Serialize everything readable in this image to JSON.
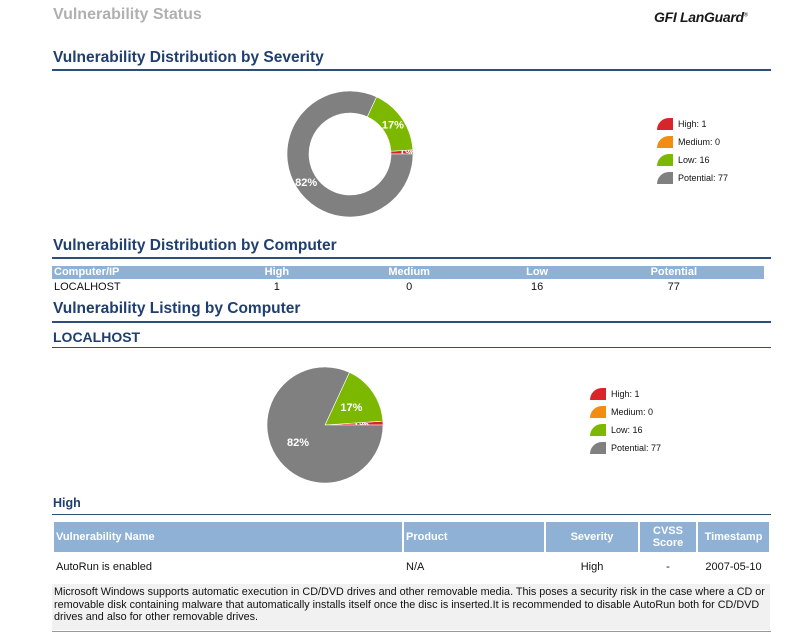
{
  "header": {
    "title": "Vulnerability Status",
    "logo_brand": "GFI",
    "logo_product": "LanGuard",
    "logo_tm": "®"
  },
  "sections": {
    "severity_title": "Vulnerability Distribution by Severity",
    "computer_title": "Vulnerability Distribution by Computer",
    "listing_title": "Vulnerability Listing by Computer",
    "host_title": "LOCALHOST",
    "high_title": "High"
  },
  "colors": {
    "high": "#d9252a",
    "medium": "#f28c12",
    "low": "#7db800",
    "potential": "#808080",
    "title": "#1f3f6e",
    "table_header": "#8fb1d5"
  },
  "chart_data": [
    {
      "type": "pie",
      "style": "donut",
      "categories": [
        "High",
        "Medium",
        "Low",
        "Potential"
      ],
      "values": [
        1,
        0,
        16,
        77
      ],
      "labels": [
        "1%",
        "",
        "17%",
        "82%"
      ],
      "legend": [
        "High: 1",
        "Medium: 0",
        "Low: 16",
        "Potential: 77"
      ],
      "legend_position": "right"
    },
    {
      "type": "pie",
      "style": "pie",
      "categories": [
        "High",
        "Medium",
        "Low",
        "Potential"
      ],
      "values": [
        1,
        0,
        16,
        77
      ],
      "labels": [
        "1%",
        "",
        "17%",
        "82%"
      ],
      "legend": [
        "High: 1",
        "Medium: 0",
        "Low: 16",
        "Potential: 77"
      ],
      "legend_position": "right"
    }
  ],
  "distribution_table": {
    "headers": [
      "Computer/IP",
      "High",
      "Medium",
      "Low",
      "Potential"
    ],
    "rows": [
      [
        "LOCALHOST",
        "1",
        "0",
        "16",
        "77"
      ]
    ]
  },
  "vuln_table": {
    "headers": {
      "name": "Vulnerability Name",
      "product": "Product",
      "severity": "Severity",
      "cvss_line1": "CVSS",
      "cvss_line2": "Score",
      "timestamp": "Timestamp"
    },
    "rows": [
      {
        "name": "AutoRun is enabled",
        "product": "N/A",
        "severity": "High",
        "cvss": "-",
        "timestamp": "2007-05-10",
        "description": "Microsoft Windows supports automatic execution in CD/DVD drives and other removable media. This poses a security risk in the case where a CD or removable disk containing malware that automatically installs itself once the disc is inserted.It is recommended to disable AutoRun both for CD/DVD drives and also for other removable drives."
      }
    ]
  }
}
